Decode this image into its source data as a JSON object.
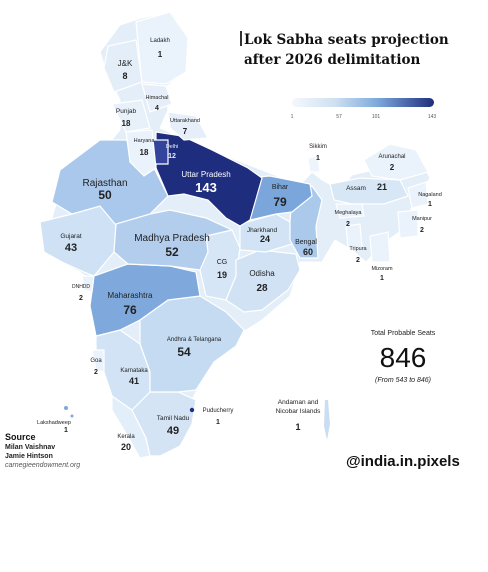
{
  "title_line1": "Lok Sabha seats projection",
  "title_line2": "after 2026 delimitation",
  "legend": {
    "ticks": [
      "1",
      "57",
      "101",
      "143"
    ],
    "colors": [
      "#f4f8fc",
      "#cfe0f2",
      "#7ea9dc",
      "#1f2d7e"
    ]
  },
  "states": [
    {
      "name": "Ladakh",
      "seats": "1"
    },
    {
      "name": "J&K",
      "seats": "8"
    },
    {
      "name": "Himachal",
      "seats": "4"
    },
    {
      "name": "Punjab",
      "seats": "18"
    },
    {
      "name": "Uttarakhand",
      "seats": "7"
    },
    {
      "name": "Haryana",
      "seats": "18"
    },
    {
      "name": "Delhi",
      "seats": "12"
    },
    {
      "name": "Rajasthan",
      "seats": "50"
    },
    {
      "name": "Uttar Pradesh",
      "seats": "143"
    },
    {
      "name": "Sikkim",
      "seats": "1"
    },
    {
      "name": "Arunachal",
      "seats": "2"
    },
    {
      "name": "Assam",
      "seats": "21"
    },
    {
      "name": "Nagaland",
      "seats": "1"
    },
    {
      "name": "Bihar",
      "seats": "79"
    },
    {
      "name": "Meghalaya",
      "seats": "2"
    },
    {
      "name": "Manipur",
      "seats": "2"
    },
    {
      "name": "Tripura",
      "seats": "2"
    },
    {
      "name": "Mizoram",
      "seats": "1"
    },
    {
      "name": "Gujarat",
      "seats": "43"
    },
    {
      "name": "Madhya Pradesh",
      "seats": "52"
    },
    {
      "name": "Jharkhand",
      "seats": "24"
    },
    {
      "name": "Bengal",
      "seats": "60"
    },
    {
      "name": "DNHDD",
      "seats": "2"
    },
    {
      "name": "CG",
      "seats": "19"
    },
    {
      "name": "Odisha",
      "seats": "28"
    },
    {
      "name": "Maharashtra",
      "seats": "76"
    },
    {
      "name": "Andhra & Telangana",
      "seats": "54"
    },
    {
      "name": "Goa",
      "seats": "2"
    },
    {
      "name": "Karnataka",
      "seats": "41"
    },
    {
      "name": "Lakshadweep",
      "seats": "1"
    },
    {
      "name": "Kerala",
      "seats": "20"
    },
    {
      "name": "Tamil Nadu",
      "seats": "49"
    },
    {
      "name": "Puducherry",
      "seats": "1"
    },
    {
      "name": "Andaman and Nicobar Islands",
      "seats": "1"
    }
  ],
  "total": {
    "label": "Total Probable Seats",
    "value": "846",
    "note": "(From 543 to 846)"
  },
  "source": {
    "heading": "Source",
    "authors": [
      "Milan Vaishnav",
      "Jamie Hintson"
    ],
    "site": "carnegieendowment.org"
  },
  "handle": "@india.in.pixels"
}
